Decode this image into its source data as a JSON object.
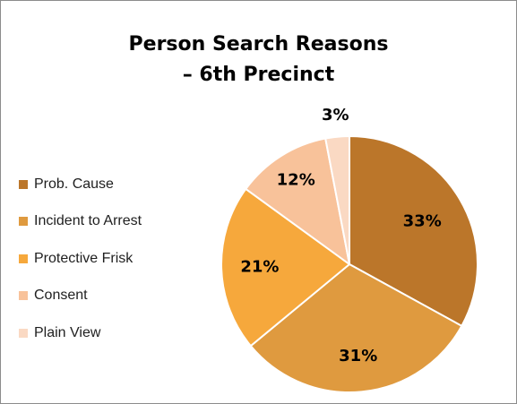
{
  "chart_data": {
    "type": "pie",
    "title_lines": [
      "Person Search Reasons",
      "– 6th Precinct"
    ],
    "legend_position": "left",
    "categories": [
      "Prob. Cause",
      "Incident to Arrest",
      "Protective Frisk",
      "Consent",
      "Plain View"
    ],
    "values": [
      33,
      31,
      21,
      12,
      3
    ],
    "data_labels": [
      "33%",
      "31%",
      "21%",
      "12%",
      "3%"
    ],
    "colors": [
      "#bb762a",
      "#df9a3f",
      "#f6a83c",
      "#f8c29a",
      "#fad9c3"
    ]
  }
}
